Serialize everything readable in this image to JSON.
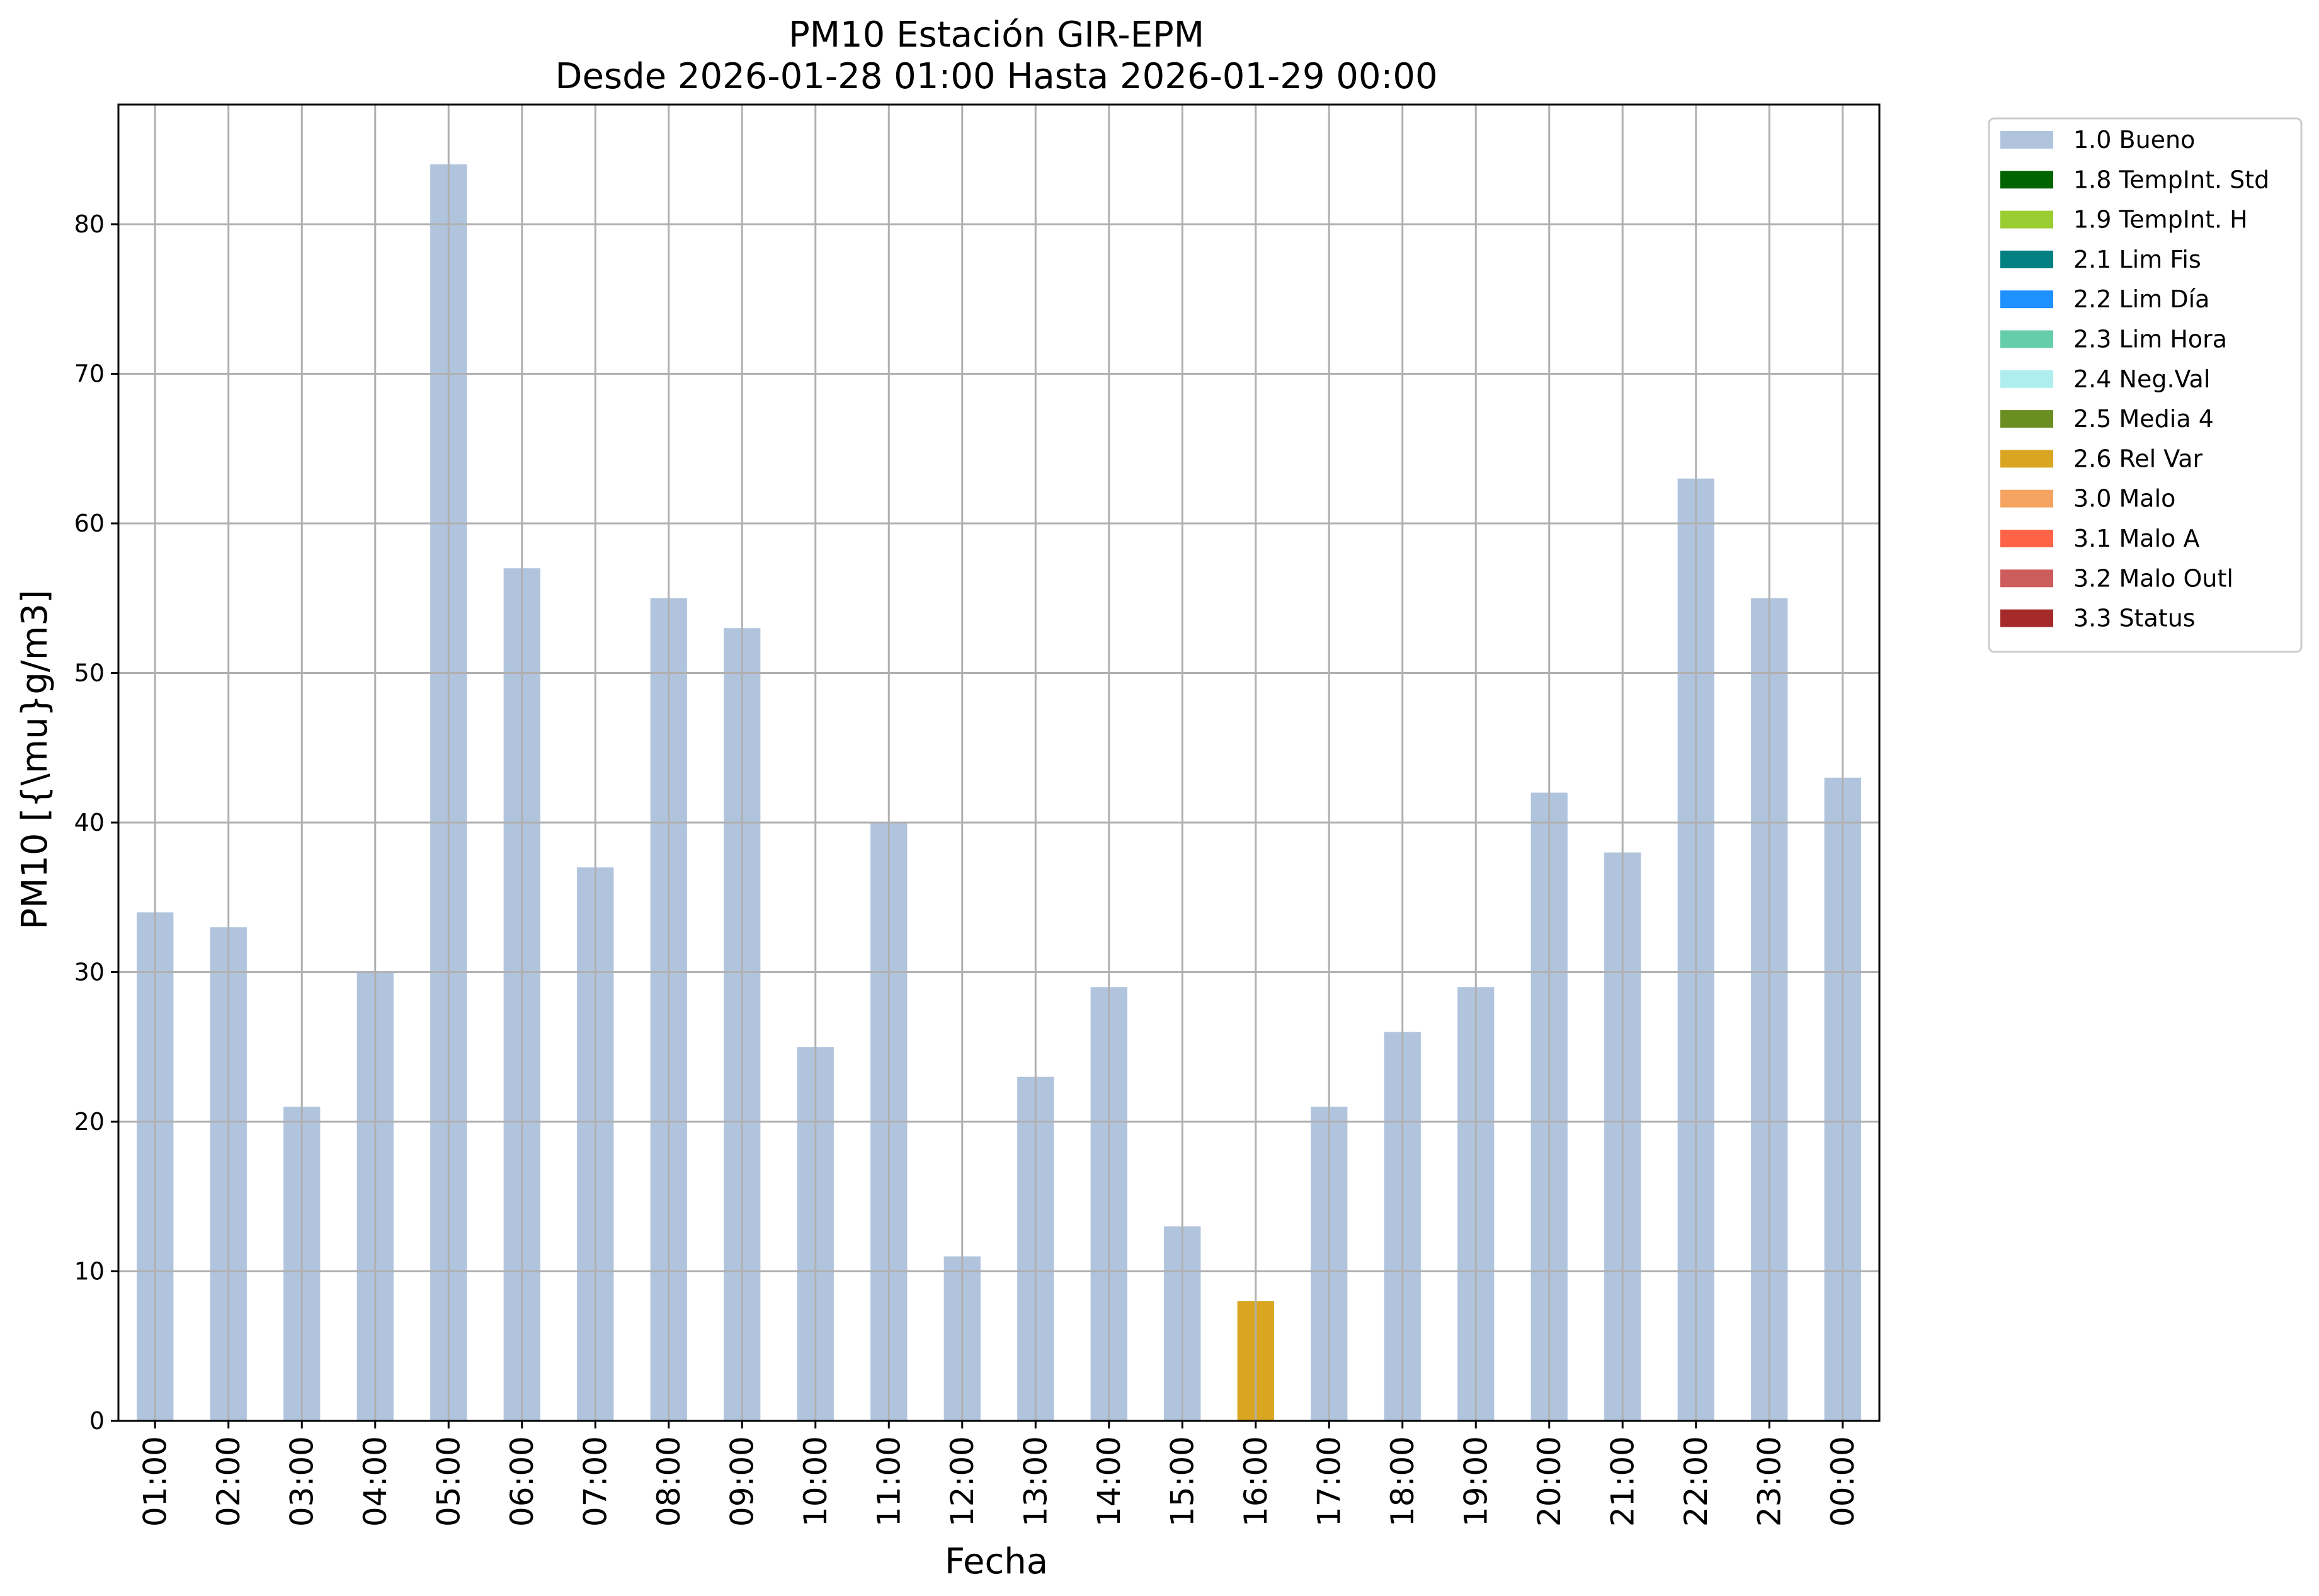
{
  "chart_data": {
    "type": "bar",
    "title": [
      "PM10 Estación GIR-EPM",
      "Desde 2026-01-28 01:00 Hasta 2026-01-29 00:00"
    ],
    "xlabel": "Fecha",
    "ylabel": "PM10 [{\\mu}g/m3]",
    "ylim": [
      0,
      88
    ],
    "yticks": [
      0,
      10,
      20,
      30,
      40,
      50,
      60,
      70,
      80
    ],
    "grid": true,
    "legend_position": "outside-top-right",
    "categories": [
      "01:00",
      "02:00",
      "03:00",
      "04:00",
      "05:00",
      "06:00",
      "07:00",
      "08:00",
      "09:00",
      "10:00",
      "11:00",
      "12:00",
      "13:00",
      "14:00",
      "15:00",
      "16:00",
      "17:00",
      "18:00",
      "19:00",
      "20:00",
      "21:00",
      "22:00",
      "23:00",
      "00:00"
    ],
    "values": [
      34,
      33,
      21,
      30,
      84,
      57,
      37,
      55,
      53,
      25,
      40,
      11,
      23,
      29,
      13,
      8,
      21,
      26,
      29,
      42,
      38,
      63,
      55,
      43
    ],
    "flags": [
      "1.0 Bueno",
      "1.0 Bueno",
      "1.0 Bueno",
      "1.0 Bueno",
      "1.0 Bueno",
      "1.0 Bueno",
      "1.0 Bueno",
      "1.0 Bueno",
      "1.0 Bueno",
      "1.0 Bueno",
      "1.0 Bueno",
      "1.0 Bueno",
      "1.0 Bueno",
      "1.0 Bueno",
      "1.0 Bueno",
      "2.6 Rel Var",
      "1.0 Bueno",
      "1.0 Bueno",
      "1.0 Bueno",
      "1.0 Bueno",
      "1.0 Bueno",
      "1.0 Bueno",
      "1.0 Bueno",
      "1.0 Bueno"
    ],
    "legend": [
      {
        "name": "1.0 Bueno",
        "color": "#b0c4de"
      },
      {
        "name": "1.8 TempInt. Std",
        "color": "#006400"
      },
      {
        "name": "1.9 TempInt. H",
        "color": "#9acd32"
      },
      {
        "name": "2.1 Lim Fis",
        "color": "#008080"
      },
      {
        "name": "2.2 Lim Día",
        "color": "#1e90ff"
      },
      {
        "name": "2.3 Lim Hora",
        "color": "#66cdaa"
      },
      {
        "name": "2.4 Neg.Val",
        "color": "#afeeee"
      },
      {
        "name": "2.5 Media 4",
        "color": "#6b8e23"
      },
      {
        "name": "2.6 Rel Var",
        "color": "#daa520"
      },
      {
        "name": "3.0 Malo",
        "color": "#f4a460"
      },
      {
        "name": "3.1 Malo A",
        "color": "#ff6347"
      },
      {
        "name": "3.2 Malo Outl",
        "color": "#cd5c5c"
      },
      {
        "name": "3.3 Status",
        "color": "#a52a2a"
      }
    ]
  }
}
